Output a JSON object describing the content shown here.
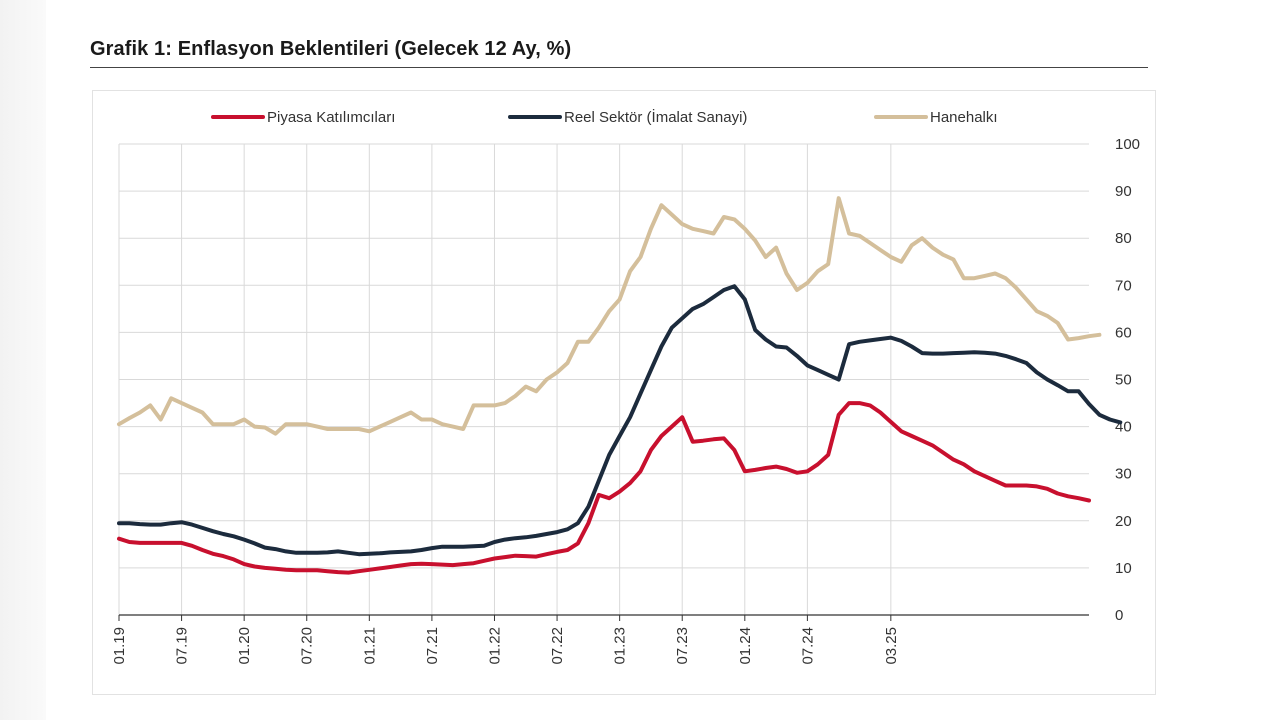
{
  "page": {
    "title": "Grafik 1: Enflasyon Beklentileri (Gelecek 12 Ay, %)"
  },
  "chart_data": {
    "type": "line",
    "title": "Grafik 1: Enflasyon Beklentileri (Gelecek 12 Ay, %)",
    "xlabel": "",
    "ylabel": "",
    "ylim": [
      0,
      100
    ],
    "yticks": [
      0,
      10,
      20,
      30,
      40,
      50,
      60,
      70,
      80,
      90,
      100
    ],
    "xticks": [
      "01.19",
      "07.19",
      "01.20",
      "07.20",
      "01.21",
      "07.21",
      "01.22",
      "07.22",
      "01.23",
      "07.23",
      "01.24",
      "07.24",
      "03.25"
    ],
    "grid": true,
    "legend_position": "top",
    "x_start": "01.19",
    "x_end": "03.25",
    "series": [
      {
        "name": "Piyasa Katılımcıları",
        "color": "#c8102e",
        "values": [
          16.2,
          15.5,
          15.3,
          15.3,
          15.3,
          15.3,
          15.3,
          14.7,
          13.8,
          13.0,
          12.5,
          11.8,
          10.8,
          10.3,
          10.0,
          9.8,
          9.6,
          9.5,
          9.5,
          9.5,
          9.3,
          9.1,
          9.0,
          9.3,
          9.6,
          9.9,
          10.2,
          10.5,
          10.8,
          10.9,
          10.8,
          10.7,
          10.6,
          10.8,
          11.0,
          11.5,
          12.0,
          12.3,
          12.6,
          12.5,
          12.4,
          12.9,
          13.4,
          13.8,
          15.2,
          19.5,
          25.5,
          24.8,
          26.2,
          28.0,
          30.5,
          35.0,
          38.0,
          40.0,
          42.0,
          36.8,
          37.0,
          37.3,
          37.5,
          35.0,
          30.5,
          30.8,
          31.2,
          31.5,
          31.0,
          30.2,
          30.5,
          32.0,
          34.0,
          42.5,
          45.0,
          45.0,
          44.5,
          43.0,
          41.0,
          39.0,
          38.0,
          37.0,
          36.0,
          34.5,
          33.0,
          32.0,
          30.5,
          29.5,
          28.5,
          27.5,
          27.5,
          27.5,
          27.3,
          26.8,
          25.8,
          25.2,
          24.8,
          24.3
        ]
      },
      {
        "name": "Reel Sektör (İmalat Sanayi)",
        "color": "#1c2b3d",
        "values": [
          19.5,
          19.5,
          19.3,
          19.2,
          19.2,
          19.5,
          19.7,
          19.2,
          18.5,
          17.8,
          17.2,
          16.7,
          16.0,
          15.2,
          14.3,
          14.0,
          13.5,
          13.2,
          13.2,
          13.2,
          13.3,
          13.5,
          13.2,
          12.9,
          13.0,
          13.1,
          13.3,
          13.4,
          13.5,
          13.8,
          14.2,
          14.5,
          14.5,
          14.5,
          14.6,
          14.7,
          15.5,
          16.0,
          16.3,
          16.5,
          16.8,
          17.2,
          17.6,
          18.2,
          19.5,
          23.0,
          28.5,
          34.0,
          38.0,
          42.0,
          47.0,
          52.0,
          57.0,
          61.0,
          63.0,
          65.0,
          66.0,
          67.5,
          69.0,
          69.8,
          67.0,
          60.5,
          58.5,
          57.0,
          56.8,
          55.0,
          53.0,
          52.0,
          51.0,
          50.0,
          57.5,
          58.0,
          58.3,
          58.6,
          58.9,
          58.2,
          57.0,
          55.6,
          55.5,
          55.5,
          55.6,
          55.7,
          55.8,
          55.7,
          55.5,
          55.0,
          54.3,
          53.5,
          51.5,
          50.0,
          48.8,
          47.5,
          47.5,
          44.8,
          42.5,
          41.5,
          40.9
        ]
      },
      {
        "name": "Hanehalkı",
        "color": "#d4bf9b",
        "values": [
          40.5,
          41.8,
          43.0,
          44.5,
          41.5,
          46.0,
          45.0,
          44.0,
          43.0,
          40.5,
          40.5,
          40.5,
          41.5,
          40.0,
          39.8,
          38.5,
          40.5,
          40.5,
          40.5,
          40.0,
          39.5,
          39.5,
          39.5,
          39.5,
          39.0,
          40.0,
          41.0,
          42.0,
          43.0,
          41.5,
          41.5,
          40.5,
          40.0,
          39.5,
          44.5,
          44.5,
          44.5,
          45.0,
          46.5,
          48.5,
          47.5,
          50.0,
          51.5,
          53.5,
          58.0,
          58.0,
          61.0,
          64.5,
          67.0,
          73.0,
          76.0,
          82.0,
          87.0,
          85.0,
          83.0,
          82.0,
          81.5,
          81.0,
          84.5,
          84.0,
          82.0,
          79.5,
          76.0,
          78.0,
          72.5,
          69.0,
          70.5,
          73.0,
          74.5,
          88.5,
          81.0,
          80.5,
          79.0,
          77.5,
          76.0,
          75.0,
          78.5,
          80.0,
          78.0,
          76.5,
          75.5,
          71.5,
          71.5,
          72.0,
          72.5,
          71.5,
          69.5,
          67.0,
          64.5,
          63.5,
          62.0,
          58.5,
          58.8,
          59.2,
          59.5
        ]
      }
    ]
  },
  "colors": {
    "grid": "#d9d9d9",
    "axis": "#333333"
  }
}
